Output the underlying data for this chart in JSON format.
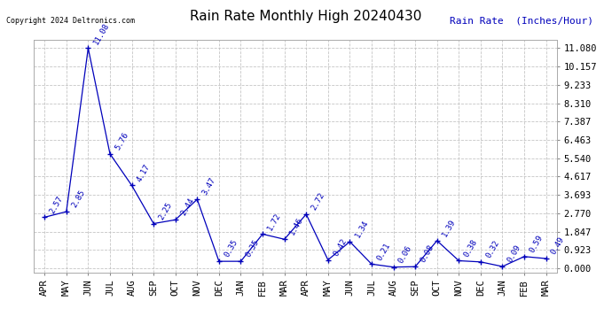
{
  "title": "Rain Rate Monthly High 20240430",
  "ylabel": "Rain Rate  (Inches/Hour)",
  "copyright_text": "Copyright 2024 Deltronics.com",
  "line_color": "#0000bb",
  "label_color": "#0000bb",
  "title_color": "#000000",
  "bg_color": "#ffffff",
  "grid_color": "#bbbbbb",
  "months": [
    "APR",
    "MAY",
    "JUN",
    "JUL",
    "AUG",
    "SEP",
    "OCT",
    "NOV",
    "DEC",
    "JAN",
    "FEB",
    "MAR",
    "APR",
    "MAY",
    "JUN",
    "JUL",
    "AUG",
    "SEP",
    "OCT",
    "NOV",
    "DEC",
    "JAN",
    "FEB",
    "MAR"
  ],
  "values": [
    2.57,
    2.85,
    11.08,
    5.76,
    4.17,
    2.25,
    2.44,
    3.47,
    0.35,
    0.35,
    1.72,
    1.46,
    2.72,
    0.42,
    1.34,
    0.21,
    0.06,
    0.08,
    1.39,
    0.38,
    0.32,
    0.09,
    0.59,
    0.49
  ],
  "yticks": [
    0.0,
    0.923,
    1.847,
    2.77,
    3.693,
    4.617,
    5.54,
    6.463,
    7.387,
    8.31,
    9.233,
    10.157,
    11.08
  ],
  "ylim": [
    -0.2,
    11.5
  ],
  "title_fontsize": 11,
  "label_fontsize": 8,
  "annotation_fontsize": 6.5,
  "tick_fontsize": 7.5,
  "copyright_fontsize": 6
}
